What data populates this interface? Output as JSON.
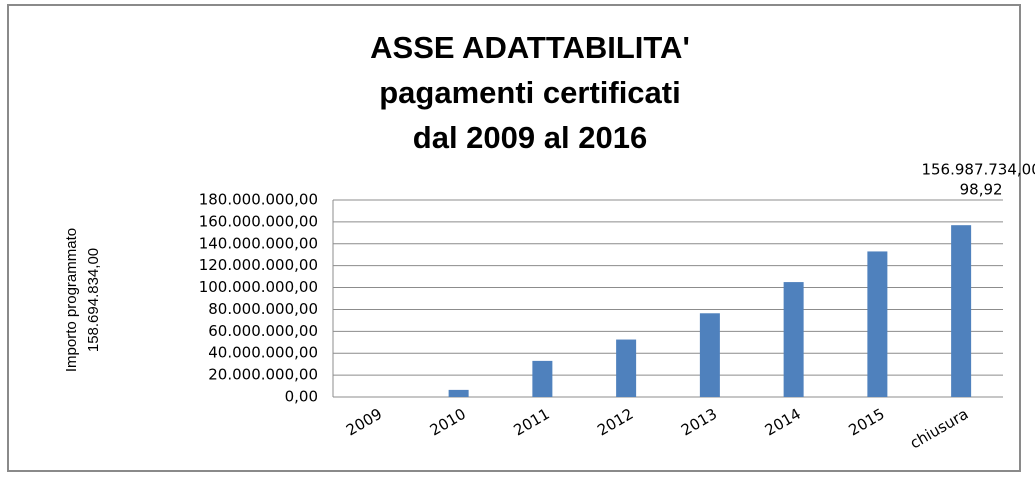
{
  "chart_data": {
    "type": "bar",
    "title_lines": [
      "ASSE ADATTABILITA'",
      "pagamenti certificati",
      "dal 2009 al 2016"
    ],
    "y_label_lines": [
      "Importo programmato",
      "158.694.834,00"
    ],
    "categories": [
      "2009",
      "2010",
      "2011",
      "2012",
      "2013",
      "2014",
      "2015",
      "chiusura"
    ],
    "values": [
      0,
      6500000,
      33000000,
      52500000,
      76500000,
      105000000,
      133000000,
      156987734
    ],
    "value_labels": [
      null,
      null,
      null,
      null,
      null,
      null,
      null,
      "156.987.734,00"
    ],
    "annotation": "98,92",
    "color": "#4f81bd",
    "ylim": [
      0,
      180000000
    ],
    "yticks": [
      {
        "value": 0,
        "label": "0,00"
      },
      {
        "value": 20000000,
        "label": "20.000.000,00"
      },
      {
        "value": 40000000,
        "label": "40.000.000,00"
      },
      {
        "value": 60000000,
        "label": "60.000.000,00"
      },
      {
        "value": 80000000,
        "label": "80.000.000,00"
      },
      {
        "value": 100000000,
        "label": "100.000.000,00"
      },
      {
        "value": 120000000,
        "label": "120.000.000,00"
      },
      {
        "value": 140000000,
        "label": "140.000.000,00"
      },
      {
        "value": 160000000,
        "label": "160.000.000,00"
      },
      {
        "value": 180000000,
        "label": "180.000.000,00"
      }
    ],
    "grid": true
  }
}
